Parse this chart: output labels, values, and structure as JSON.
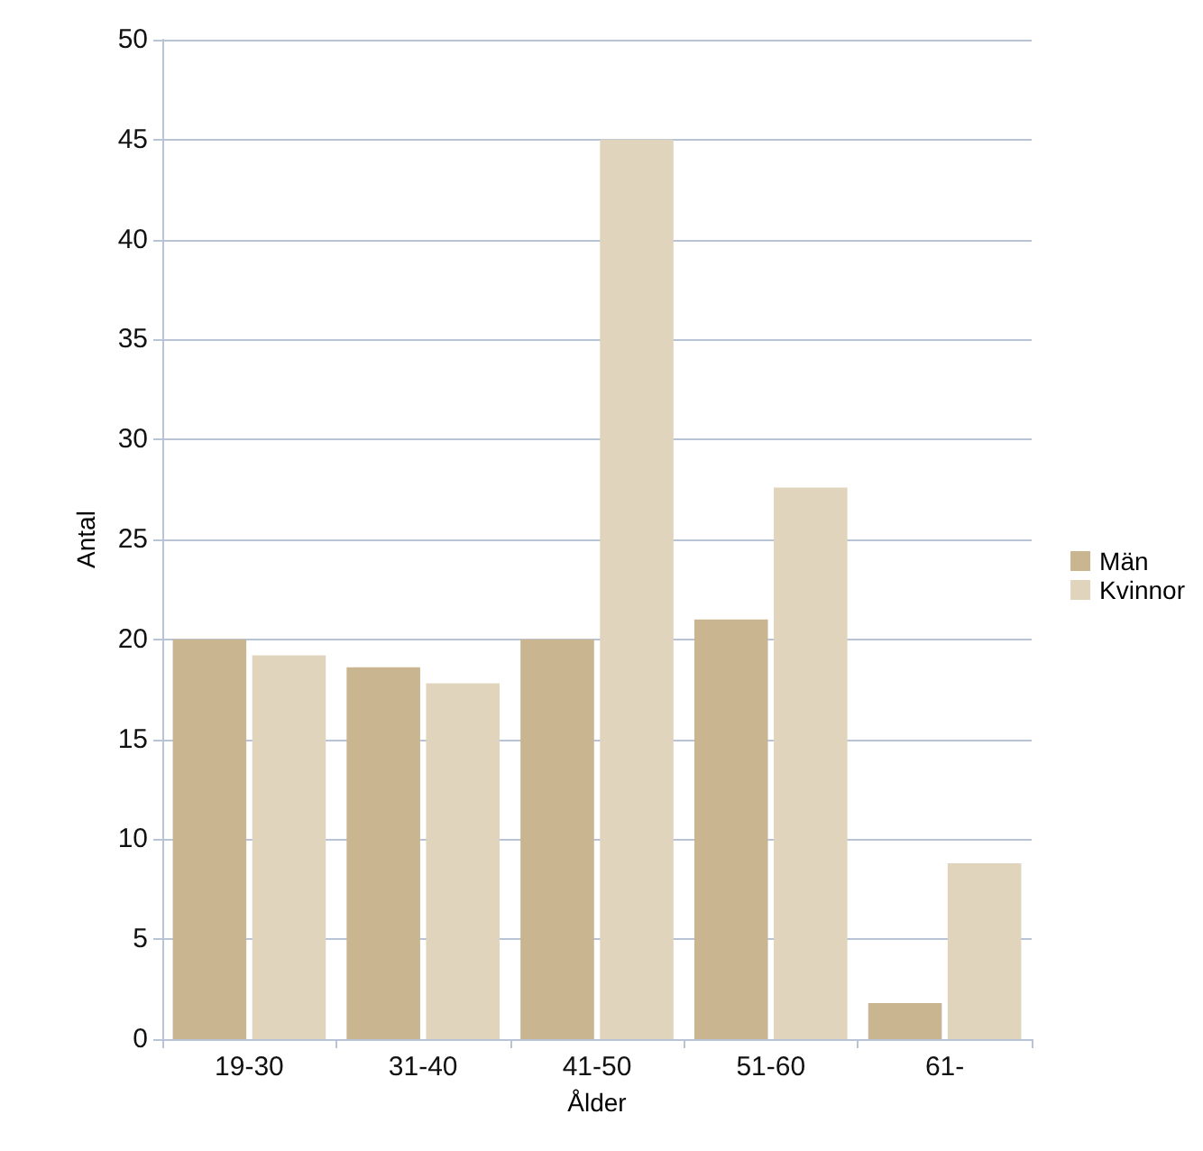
{
  "chart_data": {
    "type": "bar",
    "xlabel": "Ålder",
    "ylabel": "Antal",
    "categories": [
      "19-30",
      "31-40",
      "41-50",
      "51-60",
      "61-"
    ],
    "series": [
      {
        "name": "Män",
        "color": "#c9b590",
        "values": [
          20,
          18.6,
          20,
          21,
          1.8
        ]
      },
      {
        "name": "Kvinnor",
        "color": "#e0d4bd",
        "values": [
          19.2,
          17.8,
          45,
          27.6,
          8.8
        ]
      }
    ],
    "ylim": [
      0,
      50
    ],
    "yticks": [
      0,
      5,
      10,
      15,
      20,
      25,
      30,
      35,
      40,
      45,
      50
    ],
    "grid": "y",
    "legend": "right"
  }
}
